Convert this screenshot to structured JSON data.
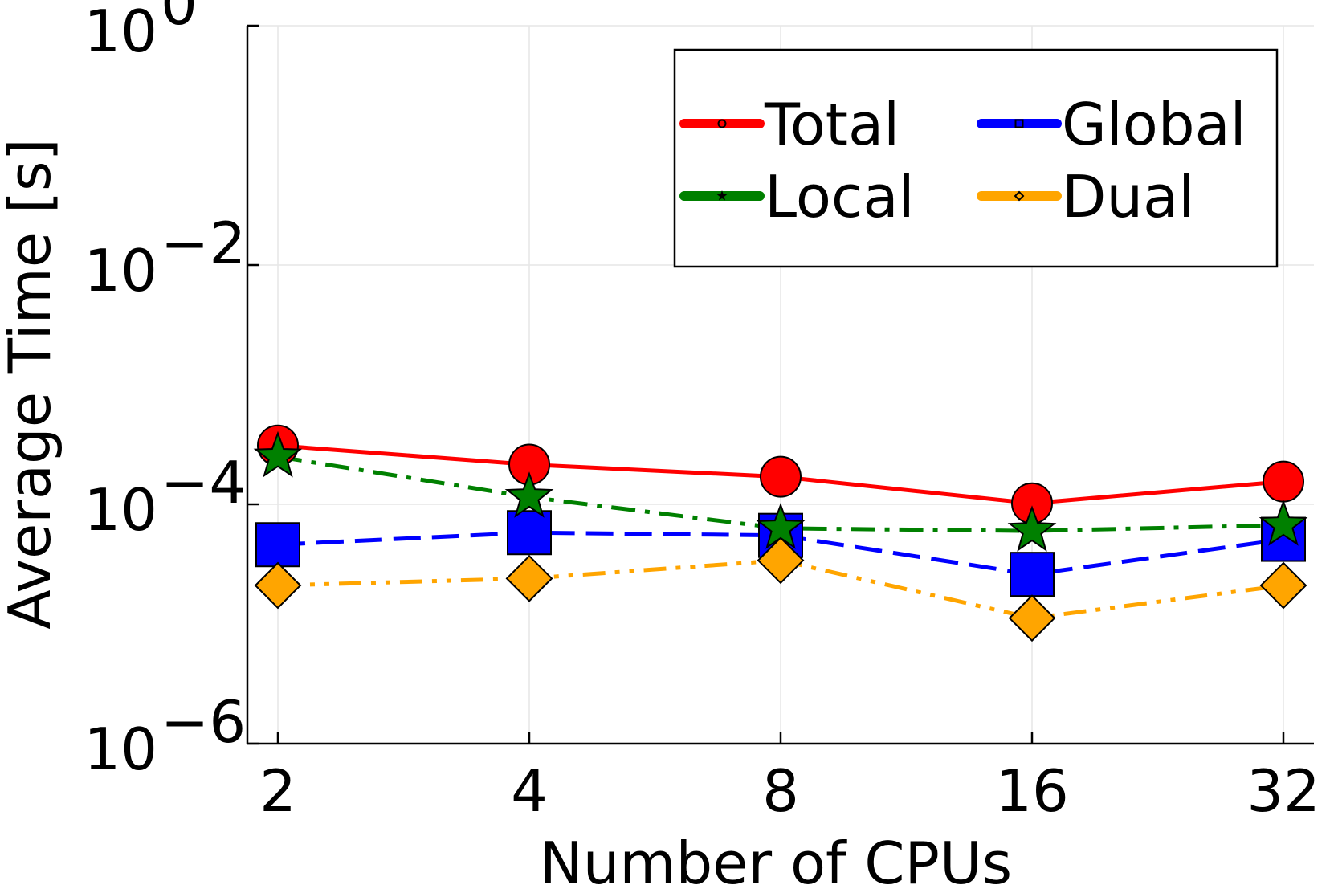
{
  "chart_data": {
    "type": "line",
    "title": "",
    "xlabel": "Number of CPUs",
    "ylabel": "Average Time [s]",
    "x_scale": "log2",
    "y_scale": "log10",
    "categories": [
      "2",
      "4",
      "8",
      "16",
      "32"
    ],
    "x": [
      2,
      4,
      8,
      16,
      32
    ],
    "ylim": [
      1e-06,
      1
    ],
    "y_ticks": [
      {
        "base": "10",
        "exp": "0",
        "value": 1
      },
      {
        "base": "10",
        "exp": "−2",
        "value": 0.01
      },
      {
        "base": "10",
        "exp": "−4",
        "value": 0.0001
      },
      {
        "base": "10",
        "exp": "−6",
        "value": 1e-06
      }
    ],
    "grid": true,
    "legend_position": "top-right",
    "series": [
      {
        "name": "Total",
        "color": "#ff0000",
        "line": "solid",
        "marker": "circle",
        "values": [
          0.00031,
          0.000215,
          0.00017,
          0.000102,
          0.000155
        ]
      },
      {
        "name": "Local",
        "color": "#008000",
        "line": "dashdot",
        "marker": "star",
        "values": [
          0.00025,
          0.000115,
          6.3e-05,
          6e-05,
          6.7e-05
        ]
      },
      {
        "name": "Global",
        "color": "#0000ff",
        "line": "dash",
        "marker": "square",
        "values": [
          4.6e-05,
          5.8e-05,
          5.5e-05,
          2.6e-05,
          5.1e-05
        ]
      },
      {
        "name": "Dual",
        "color": "#ffa500",
        "line": "dashdotdot",
        "marker": "diamond",
        "values": [
          2.1e-05,
          2.4e-05,
          3.4e-05,
          1.12e-05,
          2.1e-05
        ]
      }
    ]
  }
}
